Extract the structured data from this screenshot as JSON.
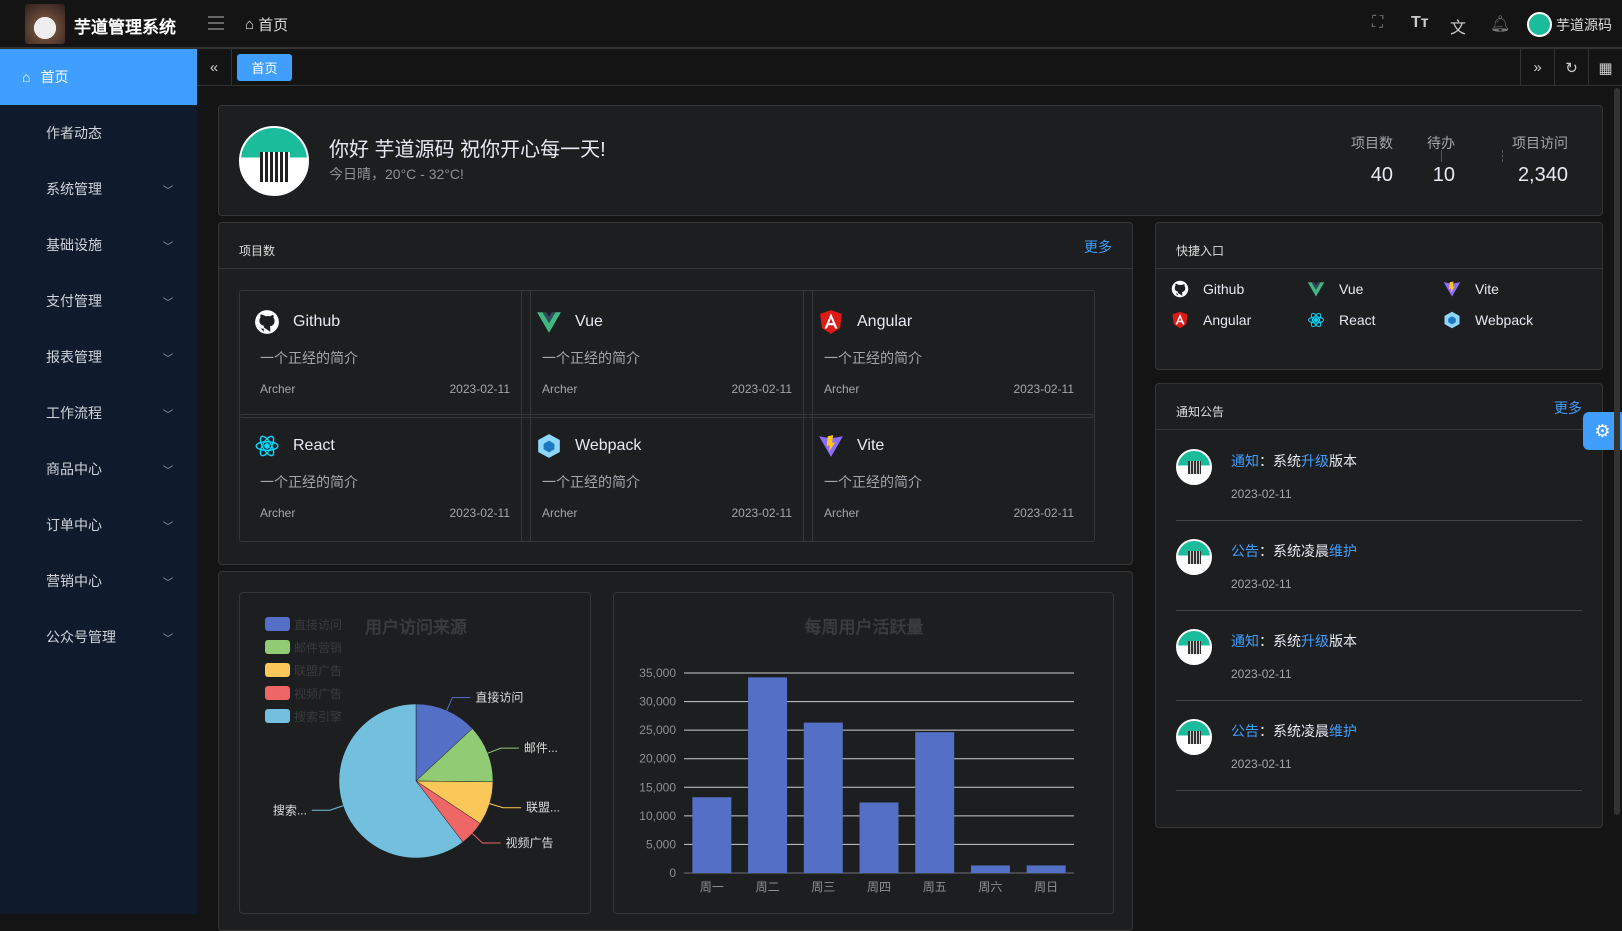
{
  "header": {
    "app_title": "芋道管理系统",
    "breadcrumb": "首页",
    "user_name": "芋道源码"
  },
  "sidebar": {
    "items": [
      {
        "label": "首页",
        "active": true
      },
      {
        "label": "作者动态"
      },
      {
        "label": "系统管理",
        "expandable": true
      },
      {
        "label": "基础设施",
        "expandable": true
      },
      {
        "label": "支付管理",
        "expandable": true
      },
      {
        "label": "报表管理",
        "expandable": true
      },
      {
        "label": "工作流程",
        "expandable": true
      },
      {
        "label": "商品中心",
        "expandable": true
      },
      {
        "label": "订单中心",
        "expandable": true
      },
      {
        "label": "营销中心",
        "expandable": true
      },
      {
        "label": "公众号管理",
        "expandable": true
      }
    ]
  },
  "tabs": [
    {
      "label": "首页",
      "active": true
    }
  ],
  "welcome": {
    "greeting": "你好 芋道源码 祝你开心每一天!",
    "weather": "今日晴，20°C - 32°C!",
    "stats": [
      {
        "label": "项目数",
        "value": "40"
      },
      {
        "label": "待办",
        "value": "10"
      },
      {
        "label": "项目访问",
        "value": "2,340"
      }
    ]
  },
  "projects": {
    "title": "项目数",
    "more": "更多",
    "items": [
      {
        "name": "Github",
        "icon": "github",
        "desc": "一个正经的简介",
        "author": "Archer",
        "date": "2023-02-11"
      },
      {
        "name": "Vue",
        "icon": "vue",
        "desc": "一个正经的简介",
        "author": "Archer",
        "date": "2023-02-11"
      },
      {
        "name": "Angular",
        "icon": "angular",
        "desc": "一个正经的简介",
        "author": "Archer",
        "date": "2023-02-11"
      },
      {
        "name": "React",
        "icon": "react",
        "desc": "一个正经的简介",
        "author": "Archer",
        "date": "2023-02-11"
      },
      {
        "name": "Webpack",
        "icon": "webpack",
        "desc": "一个正经的简介",
        "author": "Archer",
        "date": "2023-02-11"
      },
      {
        "name": "Vite",
        "icon": "vite",
        "desc": "一个正经的简介",
        "author": "Archer",
        "date": "2023-02-11"
      }
    ]
  },
  "shortcuts": {
    "title": "快捷入口",
    "items": [
      {
        "name": "Github",
        "icon": "github"
      },
      {
        "name": "Vue",
        "icon": "vue"
      },
      {
        "name": "Vite",
        "icon": "vite"
      },
      {
        "name": "Angular",
        "icon": "angular"
      },
      {
        "name": "React",
        "icon": "react"
      },
      {
        "name": "Webpack",
        "icon": "webpack"
      }
    ]
  },
  "notices": {
    "title": "通知公告",
    "more": "更多",
    "items": [
      {
        "type": "通知",
        "sep": "：",
        "parts": [
          "系统",
          "升级",
          "版本"
        ],
        "date": "2023-02-11"
      },
      {
        "type": "公告",
        "sep": "：",
        "parts": [
          "系统凌晨",
          "维护",
          ""
        ],
        "date": "2023-02-11"
      },
      {
        "type": "通知",
        "sep": "：",
        "parts": [
          "系统",
          "升级",
          "版本"
        ],
        "date": "2023-02-11"
      },
      {
        "type": "公告",
        "sep": "：",
        "parts": [
          "系统凌晨",
          "维护",
          ""
        ],
        "date": "2023-02-11"
      }
    ]
  },
  "colors": {
    "accent": "#409eff",
    "pie": [
      "#5470c6",
      "#91cc75",
      "#fac858",
      "#ee6666",
      "#73c0de"
    ],
    "bar": "#5470c6"
  },
  "chart_data": [
    {
      "type": "pie",
      "title": "用户访问来源",
      "legend": "top-left",
      "categories": [
        "直接访问",
        "邮件营销",
        "联盟广告",
        "视频广告",
        "搜索引擎"
      ],
      "labels": [
        "直接访问",
        "邮件...",
        "联盟...",
        "视频广告",
        "搜索..."
      ],
      "values": [
        335,
        310,
        234,
        135,
        1548
      ]
    },
    {
      "type": "bar",
      "title": "每周用户活跃量",
      "categories": [
        "周一",
        "周二",
        "周三",
        "周四",
        "周五",
        "周六",
        "周日"
      ],
      "values": [
        13253,
        34235,
        26321,
        12340,
        24643,
        1322,
        1324
      ],
      "ylim": [
        0,
        35000
      ],
      "yticks": [
        "0",
        "5,000",
        "10,000",
        "15,000",
        "20,000",
        "25,000",
        "30,000",
        "35,000"
      ],
      "grid": true
    }
  ]
}
